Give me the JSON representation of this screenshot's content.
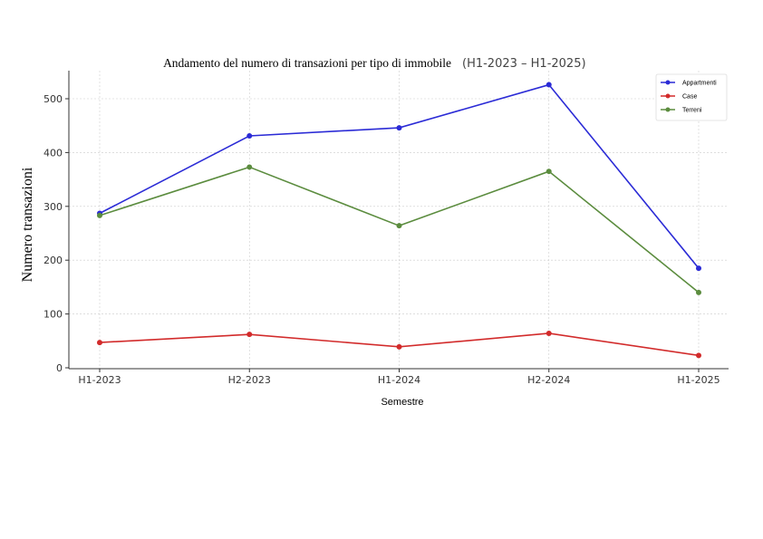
{
  "chart_data": {
    "type": "line",
    "title": "Andamento del numero di transazioni per tipo di immobile",
    "subtitle": "(H1-2023 – H1-2025)",
    "xlabel": "Semestre",
    "ylabel": "Numero transazioni",
    "categories": [
      "H1-2023",
      "H2-2023",
      "H1-2024",
      "H2-2024",
      "H1-2025"
    ],
    "ylim": [
      0,
      550
    ],
    "yticks": [
      0,
      100,
      200,
      300,
      400,
      500
    ],
    "grid": true,
    "legend_position": "top-right",
    "series": [
      {
        "name": "Appartmenti",
        "color": "#2b2bd6",
        "values": [
          287,
          431,
          446,
          526,
          185
        ]
      },
      {
        "name": "Case",
        "color": "#d22b2b",
        "values": [
          47,
          62,
          39,
          64,
          23
        ]
      },
      {
        "name": "Terreni",
        "color": "#5b8c3e",
        "values": [
          283,
          373,
          264,
          365,
          140
        ]
      }
    ]
  }
}
